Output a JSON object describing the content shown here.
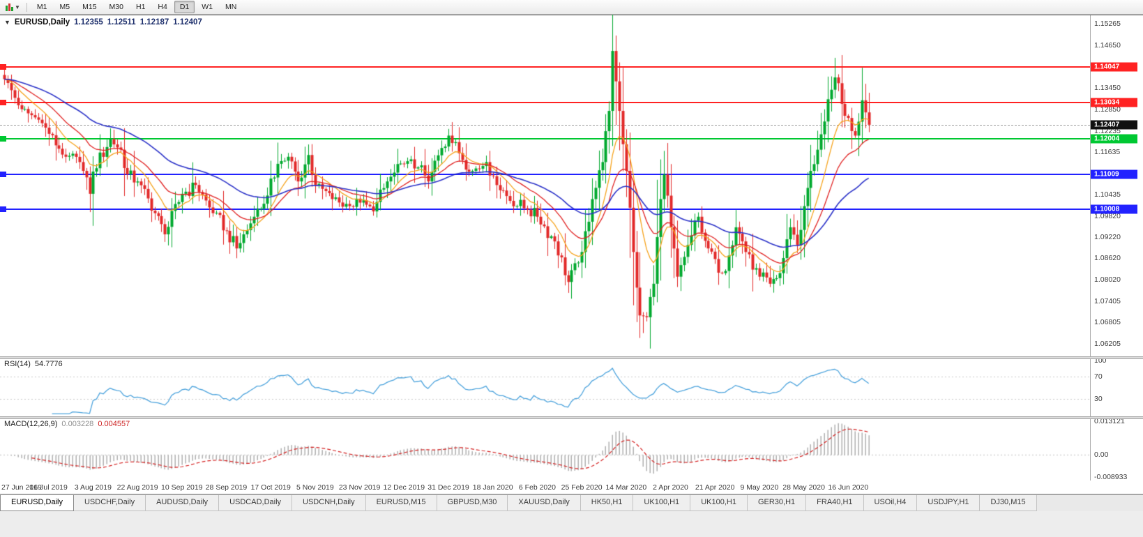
{
  "toolbar": {
    "timeframes": [
      "M1",
      "M5",
      "M15",
      "M30",
      "H1",
      "H4",
      "D1",
      "W1",
      "MN"
    ],
    "active": "D1",
    "chart_type_icon": "candlestick-chart-icon"
  },
  "chart": {
    "title": {
      "symbol": "EURUSD,Daily",
      "open": "1.12355",
      "high": "1.12511",
      "low": "1.12187",
      "close": "1.12407"
    },
    "price_axis_ticks": [
      "1.15265",
      "1.14650",
      "1.14040",
      "1.13450",
      "1.12850",
      "1.12235",
      "1.11635",
      "1.11035",
      "1.10435",
      "1.09820",
      "1.09220",
      "1.08620",
      "1.08020",
      "1.07405",
      "1.06805",
      "1.06205"
    ],
    "levels": [
      {
        "price": 1.14047,
        "label": "1.14047",
        "color": "#ff2222"
      },
      {
        "price": 1.13034,
        "label": "1.13034",
        "color": "#ff2222"
      },
      {
        "price": 1.12004,
        "label": "1.12004",
        "color": "#00c832"
      },
      {
        "price": 1.11009,
        "label": "1.11009",
        "color": "#2222ff"
      },
      {
        "price": 1.10008,
        "label": "1.10008",
        "color": "#2222ff"
      }
    ],
    "current_price": {
      "value": 1.12407,
      "label": "1.12407",
      "badge_bg": "#111111"
    }
  },
  "rsi": {
    "label": "RSI(14)",
    "value": "54.7776",
    "axis_labels": [
      {
        "value": 100,
        "label": "100"
      },
      {
        "value": 70,
        "label": "70"
      },
      {
        "value": 30,
        "label": "30"
      }
    ],
    "levels": [
      70,
      30
    ]
  },
  "macd": {
    "label": "MACD(12,26,9)",
    "macd_value": "0.003228",
    "signal_value": "0.004557",
    "axis_labels": [
      {
        "value": 0.013121,
        "label": "0.013121"
      },
      {
        "value": 0,
        "label": "0.00"
      },
      {
        "value": -0.008933,
        "label": "-0.008933"
      }
    ],
    "range": [
      -0.008933,
      0.013121
    ]
  },
  "tabs": {
    "items": [
      "EURUSD,Daily",
      "USDCHF,Daily",
      "AUDUSD,Daily",
      "USDCAD,Daily",
      "USDCNH,Daily",
      "EURUSD,M15",
      "GBPUSD,M30",
      "XAUUSD,Daily",
      "HK50,H1",
      "UK100,H1",
      "UK100,H1",
      "GER30,H1",
      "FRA40,H1",
      "USOil,H4",
      "USDJPY,H1",
      "DJ30,M15"
    ],
    "active_index": 0
  },
  "chart_data": {
    "type": "candlestick",
    "symbol": "EURUSD",
    "timeframe": "Daily",
    "ohlc_display": {
      "open": "1.12355",
      "high": "1.12511",
      "low": "1.12187",
      "close": "1.12407"
    },
    "n_candles": 254,
    "label_every": 13,
    "price_range": [
      1.0582,
      1.1551
    ],
    "dates": [
      "27 Jun 2019",
      "16 Jul 2019",
      "3 Aug 2019",
      "22 Aug 2019",
      "10 Sep 2019",
      "28 Sep 2019",
      "17 Oct 2019",
      "5 Nov 2019",
      "23 Nov 2019",
      "12 Dec 2019",
      "31 Dec 2019",
      "18 Jan 2020",
      "6 Feb 2020",
      "25 Feb 2020",
      "14 Mar 2020",
      "2 Apr 2020",
      "21 Apr 2020",
      "9 May 2020",
      "28 May 2020",
      "16 Jun 2020"
    ],
    "anchors": [
      [
        0,
        1.137
      ],
      [
        5,
        1.1285
      ],
      [
        10,
        1.1255
      ],
      [
        13,
        1.1215
      ],
      [
        18,
        1.115
      ],
      [
        22,
        1.1135
      ],
      [
        25,
        1.1045
      ],
      [
        26,
        1.1108
      ],
      [
        31,
        1.12
      ],
      [
        34,
        1.117
      ],
      [
        36,
        1.11
      ],
      [
        39,
        1.108
      ],
      [
        44,
        1.099
      ],
      [
        47,
        1.093
      ],
      [
        52,
        1.1045
      ],
      [
        56,
        1.107
      ],
      [
        61,
        1.099
      ],
      [
        65,
        1.094
      ],
      [
        68,
        1.089
      ],
      [
        73,
        1.098
      ],
      [
        77,
        1.104
      ],
      [
        80,
        1.113
      ],
      [
        83,
        1.115
      ],
      [
        86,
        1.108
      ],
      [
        89,
        1.1155
      ],
      [
        91,
        1.107
      ],
      [
        96,
        1.103
      ],
      [
        101,
        1.101
      ],
      [
        104,
        1.102
      ],
      [
        108,
        1.0995
      ],
      [
        112,
        1.108
      ],
      [
        117,
        1.113
      ],
      [
        121,
        1.112
      ],
      [
        124,
        1.108
      ],
      [
        128,
        1.1175
      ],
      [
        130,
        1.121
      ],
      [
        133,
        1.116
      ],
      [
        137,
        1.111
      ],
      [
        141,
        1.1135
      ],
      [
        143,
        1.1095
      ],
      [
        148,
        1.1025
      ],
      [
        153,
        1.1
      ],
      [
        156,
        1.098
      ],
      [
        161,
        1.091
      ],
      [
        165,
        1.0795
      ],
      [
        168,
        1.085
      ],
      [
        169,
        1.088
      ],
      [
        172,
        1.103
      ],
      [
        175,
        1.1135
      ],
      [
        177,
        1.128
      ],
      [
        178,
        1.145
      ],
      [
        180,
        1.128
      ],
      [
        182,
        1.111
      ],
      [
        184,
        1.088
      ],
      [
        186,
        1.07
      ],
      [
        188,
        1.0695
      ],
      [
        190,
        1.079
      ],
      [
        192,
        1.103
      ],
      [
        193,
        1.11
      ],
      [
        195,
        1.095
      ],
      [
        197,
        1.081
      ],
      [
        200,
        1.09
      ],
      [
        203,
        1.098
      ],
      [
        206,
        1.089
      ],
      [
        208,
        1.086
      ],
      [
        210,
        1.082
      ],
      [
        212,
        1.087
      ],
      [
        214,
        1.095
      ],
      [
        216,
        1.091
      ],
      [
        219,
        1.083
      ],
      [
        221,
        1.081
      ],
      [
        224,
        1.079
      ],
      [
        227,
        1.082
      ],
      [
        230,
        1.095
      ],
      [
        232,
        1.09
      ],
      [
        234,
        1.101
      ],
      [
        236,
        1.111
      ],
      [
        238,
        1.117
      ],
      [
        240,
        1.125
      ],
      [
        242,
        1.134
      ],
      [
        243,
        1.1375
      ],
      [
        245,
        1.13
      ],
      [
        247,
        1.126
      ],
      [
        249,
        1.121
      ],
      [
        251,
        1.131
      ],
      [
        253,
        1.12407
      ]
    ],
    "wick_overrides": [
      {
        "i": 178,
        "h": 1.1495
      },
      {
        "i": 243,
        "h": 1.1422
      },
      {
        "i": 186,
        "l": 1.0636
      },
      {
        "i": 187,
        "l": 1.065
      },
      {
        "i": 165,
        "l": 1.0778
      },
      {
        "i": 68,
        "l": 1.0879
      }
    ],
    "overlays": [
      {
        "name": "fast-ma",
        "period": 10,
        "color": "#f5a21b"
      },
      {
        "name": "mid-ma",
        "period": 21,
        "color": "#e02020"
      },
      {
        "name": "slow-ma",
        "period": 50,
        "color": "#2b32c8"
      }
    ],
    "colors": {
      "up": "#00a92e",
      "down": "#e22929",
      "rsi": "#4aa2dc",
      "macd_hist": "#aaaaaa",
      "macd_signal": "#d42020"
    },
    "indicators": {
      "rsi_period": 14,
      "macd": [
        12,
        26,
        9
      ]
    }
  }
}
